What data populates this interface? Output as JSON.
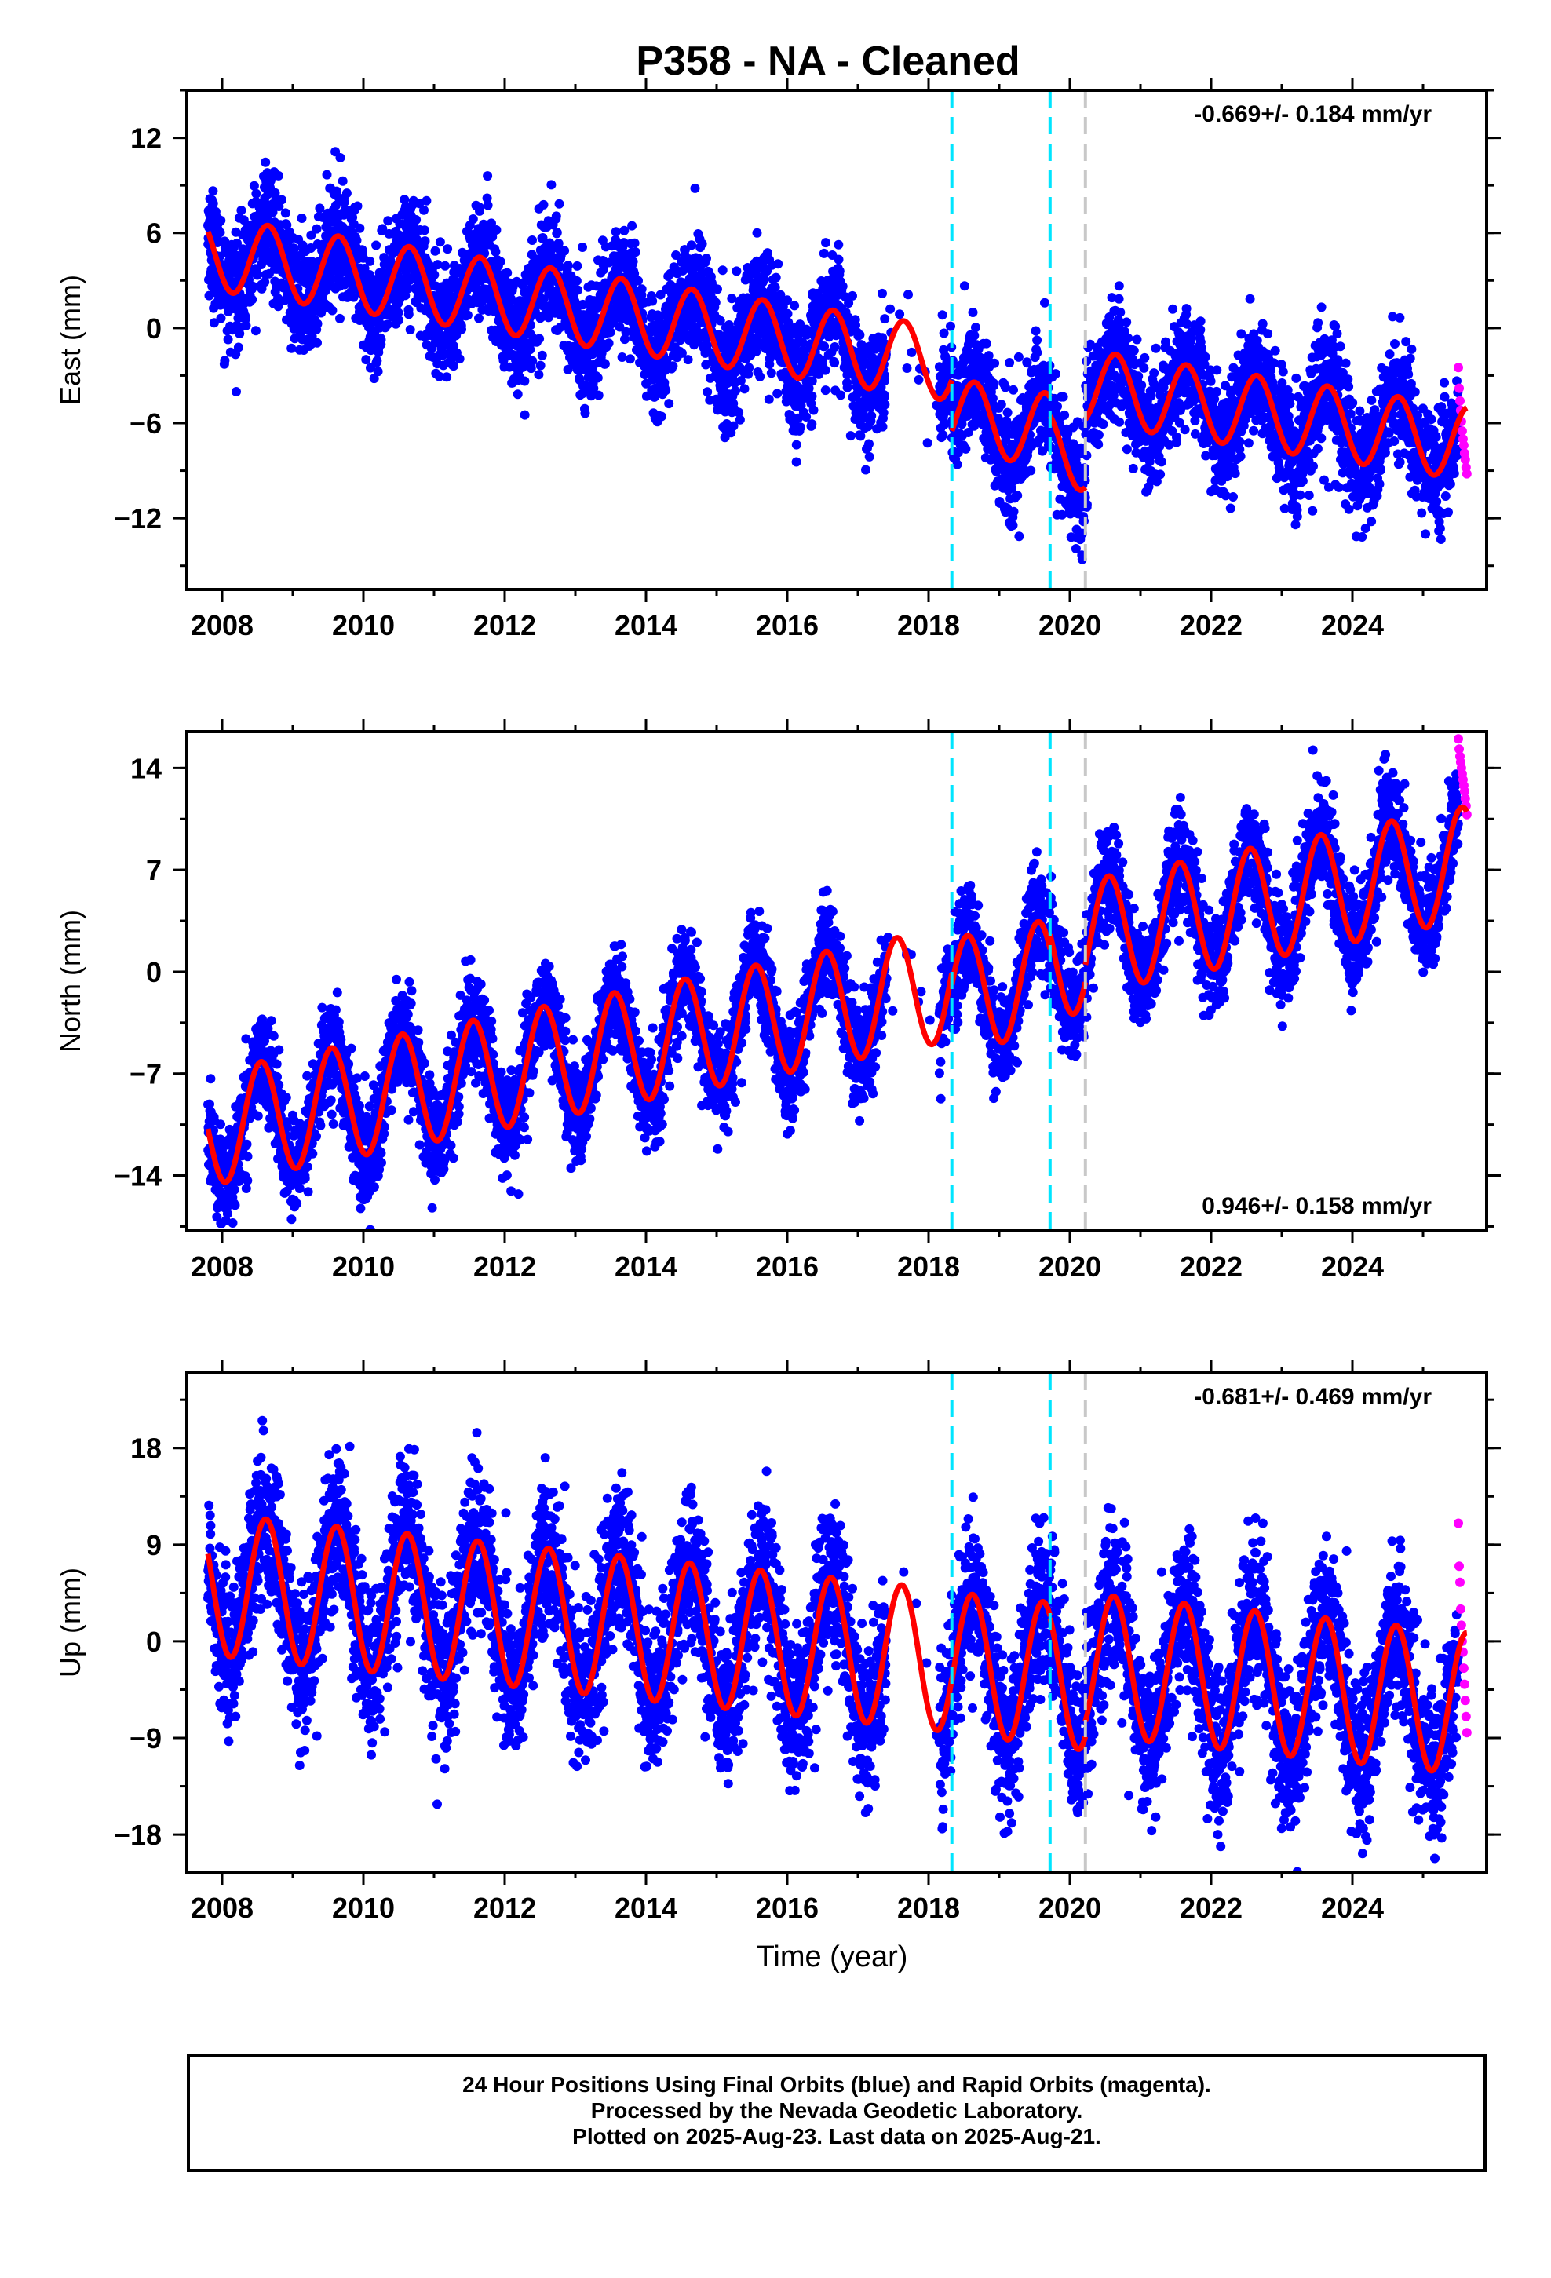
{
  "title": "P358  - NA - Cleaned",
  "xlabel": "Time (year)",
  "caption": [
    "24 Hour Positions Using Final Orbits (blue) and Rapid Orbits (magenta).",
    "Processed by the Nevada Geodetic Laboratory.",
    "Plotted on 2025-Aug-23. Last data on 2025-Aug-21."
  ],
  "colors": {
    "final": "#0000ff",
    "rapid": "#ff00ff",
    "model": "#ff0000",
    "event": "#00e5ff",
    "equipment": "#c8c8c8"
  },
  "chart_data": [
    {
      "type": "scatter",
      "component": "east",
      "ylabel": "East (mm)",
      "rate_label": "-0.669+/- 0.184 mm/yr",
      "rate_position": "top-right",
      "xlim": [
        2007.5,
        2025.9
      ],
      "ylim": [
        -16.5,
        15
      ],
      "yticks": [
        12,
        6,
        0,
        -6,
        -12
      ],
      "xticks": [
        2008,
        2010,
        2012,
        2014,
        2016,
        2018,
        2020,
        2022,
        2024
      ],
      "event_lines": [
        2018.33,
        2019.72
      ],
      "equipment_lines": [
        2020.22
      ],
      "model_segments": [
        {
          "t0": 2007.8,
          "t1": 2018.33,
          "offset": 4.6,
          "rate": -0.669,
          "amp": 2.3,
          "phase": 2008.65
        },
        {
          "t0": 2018.33,
          "t1": 2019.72,
          "offset": 1.4,
          "rate": -0.669,
          "amp": 2.3,
          "phase": 2008.65
        },
        {
          "t0": 2019.72,
          "t1": 2020.22,
          "offset": 0.2,
          "rate": -0.669,
          "amp": 2.3,
          "phase": 2008.65
        },
        {
          "t0": 2020.22,
          "t1": 2025.62,
          "offset": 4.5,
          "rate": -0.669,
          "amp": 2.3,
          "phase": 2008.65
        }
      ],
      "scatter_sd": 1.8,
      "rapid_range": [
        2025.5,
        2025.62
      ],
      "rapid_values": [
        -2.5,
        -3.8,
        -4.6,
        -5.2,
        -5.9,
        -6.5,
        -7.0,
        -7.4,
        -7.9,
        -8.3,
        -8.8,
        -9.2
      ]
    },
    {
      "type": "scatter",
      "component": "north",
      "ylabel": "North (mm)",
      "rate_label": "0.946+/- 0.158 mm/yr",
      "rate_position": "bottom-right",
      "xlim": [
        2007.5,
        2025.9
      ],
      "ylim": [
        -17.8,
        16.5
      ],
      "yticks": [
        14,
        7,
        0,
        -7,
        -14
      ],
      "xticks": [
        2008,
        2010,
        2012,
        2014,
        2016,
        2018,
        2020,
        2022,
        2024
      ],
      "event_lines": [
        2018.33,
        2019.72
      ],
      "equipment_lines": [
        2020.22
      ],
      "model_segments": [
        {
          "t0": 2007.8,
          "t1": 2018.33,
          "offset": -10.6,
          "rate": 0.946,
          "amp": 3.9,
          "phase": 2008.55
        },
        {
          "t0": 2018.33,
          "t1": 2019.72,
          "offset": -11.4,
          "rate": 0.946,
          "amp": 3.9,
          "phase": 2008.55
        },
        {
          "t0": 2019.72,
          "t1": 2020.22,
          "offset": -10.4,
          "rate": 0.946,
          "amp": 3.9,
          "phase": 2008.55
        },
        {
          "t0": 2020.22,
          "t1": 2025.62,
          "offset": -9.2,
          "rate": 0.946,
          "amp": 3.9,
          "phase": 2008.55
        }
      ],
      "scatter_sd": 1.7,
      "rapid_range": [
        2025.5,
        2025.62
      ],
      "rapid_values": [
        16.0,
        15.3,
        14.8,
        14.4,
        14.0,
        13.6,
        13.2,
        12.8,
        12.4,
        11.9,
        11.4,
        10.8
      ]
    },
    {
      "type": "scatter",
      "component": "up",
      "ylabel": "Up (mm)",
      "rate_label": "-0.681+/- 0.469 mm/yr",
      "rate_position": "top-right",
      "xlim": [
        2007.5,
        2025.9
      ],
      "ylim": [
        -21.5,
        25
      ],
      "yticks": [
        18,
        9,
        0,
        -9,
        -18
      ],
      "xticks": [
        2008,
        2010,
        2012,
        2014,
        2016,
        2018,
        2020,
        2022,
        2024
      ],
      "event_lines": [
        2018.33,
        2019.72
      ],
      "equipment_lines": [
        2020.22
      ],
      "model_segments": [
        {
          "t0": 2007.8,
          "t1": 2018.33,
          "offset": 5.2,
          "rate": -0.681,
          "amp": 6.6,
          "phase": 2008.62
        },
        {
          "t0": 2018.33,
          "t1": 2019.72,
          "offset": 5.0,
          "rate": -0.681,
          "amp": 6.6,
          "phase": 2008.62
        },
        {
          "t0": 2019.72,
          "t1": 2020.22,
          "offset": 4.8,
          "rate": -0.681,
          "amp": 6.6,
          "phase": 2008.62
        },
        {
          "t0": 2020.22,
          "t1": 2025.62,
          "offset": 6.2,
          "rate": -0.681,
          "amp": 6.6,
          "phase": 2008.62
        }
      ],
      "scatter_sd": 3.6,
      "rapid_range": [
        2025.5,
        2025.62
      ],
      "rapid_values": [
        11.0,
        7.0,
        5.5,
        3.0,
        1.5,
        0.0,
        -1.0,
        -2.5,
        -4.0,
        -5.5,
        -7.0,
        -8.5
      ]
    }
  ]
}
